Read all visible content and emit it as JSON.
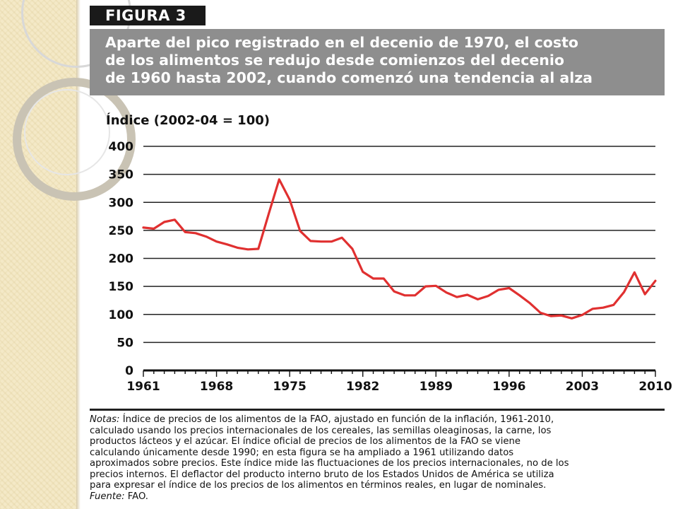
{
  "figure_label": "FIGURA 3",
  "title_lines": [
    "Aparte del pico registrado en el decenio de 1970, el costo",
    "de los alimentos se redujo desde comienzos del decenio",
    "de 1960 hasta 2002, cuando comenzó una tendencia al alza"
  ],
  "notes": {
    "label": "Notas:",
    "first_line": " Índice de precios de los alimentos de la FAO, ajustado en función de la inflación, 1961-2010,",
    "lines": [
      "calculado usando los precios internacionales de los cereales, las semillas oleaginosas, la carne, los",
      "productos lácteos y el azúcar. El índice oficial de precios de los alimentos de la FAO se viene",
      "calculando únicamente desde 1990; en esta figura se ha ampliado a 1961 utilizando datos",
      "aproximados sobre precios. Este índice mide las fluctuaciones de los precios internacionales, no de los",
      "precios internos. El deflactor del producto interno bruto de los Estados Unidos de América se utiliza",
      "para expresar el índice de los precios de los alimentos en términos reales, en lugar de nominales."
    ],
    "source_label": "Fuente:",
    "source_text": " FAO."
  },
  "colors": {
    "line": "#e03030",
    "title_box": "#8e8e8e",
    "label_box": "#1a1a1a"
  },
  "chart_data": {
    "type": "line",
    "ylabel": "Índice (2002-04 = 100)",
    "xlabel": "",
    "ylim": [
      0,
      400
    ],
    "xlim": [
      1961,
      2010
    ],
    "yticks": [
      0,
      50,
      100,
      150,
      200,
      250,
      300,
      350,
      400
    ],
    "xticks": [
      1961,
      1968,
      1975,
      1982,
      1989,
      1996,
      2003,
      2010
    ],
    "grid": true,
    "x": [
      1961,
      1962,
      1963,
      1964,
      1965,
      1966,
      1967,
      1968,
      1969,
      1970,
      1971,
      1972,
      1973,
      1974,
      1975,
      1976,
      1977,
      1978,
      1979,
      1980,
      1981,
      1982,
      1983,
      1984,
      1985,
      1986,
      1987,
      1988,
      1989,
      1990,
      1991,
      1992,
      1993,
      1994,
      1995,
      1996,
      1997,
      1998,
      1999,
      2000,
      2001,
      2002,
      2003,
      2004,
      2005,
      2006,
      2007,
      2008,
      2009,
      2010
    ],
    "series": [
      {
        "values": [
          255,
          253,
          265,
          269,
          247,
          245,
          239,
          230,
          225,
          219,
          216,
          217,
          280,
          341,
          305,
          249,
          231,
          230,
          230,
          237,
          217,
          176,
          164,
          164,
          141,
          134,
          134,
          150,
          151,
          139,
          131,
          135,
          127,
          133,
          144,
          147,
          134,
          120,
          103,
          97,
          98,
          93,
          99,
          110,
          112,
          117,
          140,
          175,
          136,
          160
        ]
      }
    ]
  }
}
